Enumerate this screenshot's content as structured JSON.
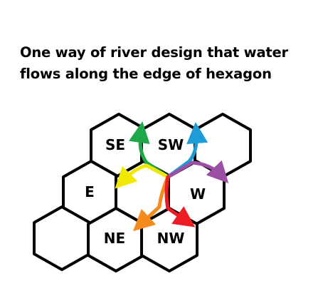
{
  "title": {
    "line1": "One way of river design that water",
    "line2": "flows along the edge of hexagon"
  },
  "hexagons": [
    {
      "label": "SE"
    },
    {
      "label": "SW"
    },
    {
      "label": ""
    },
    {
      "label": "E"
    },
    {
      "label": ""
    },
    {
      "label": "W"
    },
    {
      "label": ""
    },
    {
      "label": "NE"
    },
    {
      "label": "NW"
    }
  ],
  "river_colors": {
    "green": "#1fa84a",
    "blue": "#1e9cd8",
    "yellow": "#f0e800",
    "purple": "#9b4fa5",
    "orange": "#f58a1f",
    "red": "#ec1c24"
  }
}
